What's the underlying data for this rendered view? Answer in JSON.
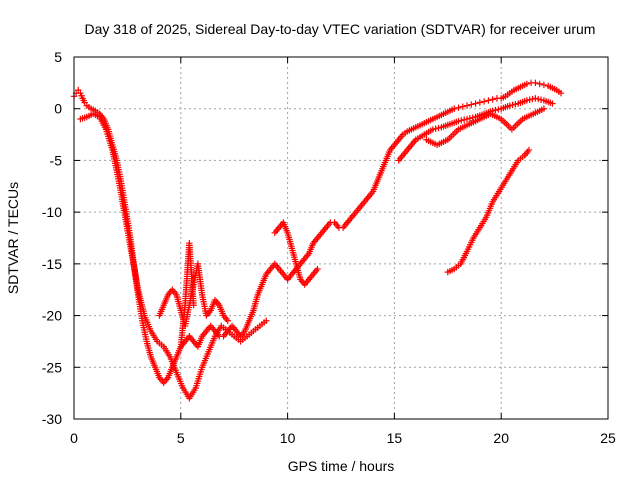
{
  "chart_data": {
    "type": "scatter",
    "title": "Day 318 of 2025, Sidereal Day-to-day VTEC variation (SDTVAR) for receiver urum",
    "xlabel": "GPS time / hours",
    "ylabel": "SDTVAR / TECUs",
    "xlim": [
      0,
      25
    ],
    "ylim": [
      -30,
      5
    ],
    "x_ticks": [
      0,
      5,
      10,
      15,
      20,
      25
    ],
    "y_ticks": [
      -30,
      -25,
      -20,
      -15,
      -10,
      -5,
      0,
      5
    ],
    "grid": true,
    "legend": "none",
    "marker": "+",
    "color": "#ff0000",
    "series": [
      {
        "x": [
          0.0,
          0.1,
          0.2,
          0.3,
          0.4,
          0.5,
          0.6,
          0.8,
          1.0,
          1.2,
          1.4,
          1.6,
          1.8,
          2.0,
          2.2,
          2.4,
          2.6,
          2.8,
          3.0,
          3.2,
          3.4,
          3.6,
          3.8,
          4.0,
          4.2,
          4.4,
          4.6,
          4.8,
          5.0,
          5.2,
          5.4,
          5.6,
          5.8,
          6.0,
          6.2,
          6.4,
          6.6,
          6.8,
          7.0,
          7.2,
          7.4,
          7.6,
          7.8,
          8.0,
          8.2,
          8.4,
          8.6,
          8.8,
          9.0,
          9.2,
          9.4,
          9.6,
          9.8,
          10.0,
          10.2,
          10.4,
          10.6,
          10.8,
          11.0,
          11.2,
          11.4,
          11.6,
          11.8,
          12.0,
          12.2,
          12.4,
          12.6,
          12.8,
          13.0,
          13.2,
          13.4,
          13.6,
          13.8,
          14.0,
          14.2,
          14.4,
          14.6,
          14.8,
          15.0,
          15.2,
          15.4,
          15.6,
          15.8,
          16.0,
          16.2,
          16.4,
          16.6,
          16.8,
          17.0,
          17.2,
          17.4,
          17.6,
          17.8,
          18.0,
          18.2,
          18.4,
          18.6,
          18.8,
          19.0,
          19.2,
          19.4,
          19.6,
          19.8,
          20.0,
          20.2,
          20.4,
          20.6,
          20.8,
          21.0,
          21.2,
          21.4,
          21.6,
          21.8,
          22.0,
          22.2,
          22.4,
          22.6,
          22.8
        ],
        "y": [
          1.2,
          1.5,
          1.8,
          1.5,
          1.0,
          0.6,
          0.3,
          0.0,
          -0.2,
          -0.5,
          -1.0,
          -2.0,
          -3.5,
          -5.0,
          -7.0,
          -9.5,
          -12.0,
          -15.0,
          -18.0,
          -20.5,
          -22.5,
          -24.0,
          -25.0,
          -26.0,
          -26.5,
          -26.0,
          -25.0,
          -24.0,
          -23.0,
          -22.5,
          -22.0,
          -22.5,
          -23.0,
          -22.0,
          -21.5,
          -21.0,
          -21.5,
          -22.0,
          -22.0,
          -21.5,
          -21.0,
          -21.5,
          -22.0,
          -21.5,
          -20.5,
          -19.5,
          -18.0,
          -17.0,
          -16.0,
          -15.5,
          -15.0,
          -15.5,
          -16.0,
          -16.5,
          -16.0,
          -15.5,
          -15.0,
          -14.5,
          -14.0,
          -13.0,
          -12.5,
          -12.0,
          -11.5,
          -11.0,
          -11.0,
          -11.5,
          -11.5,
          -11.0,
          -10.5,
          -10.0,
          -9.5,
          -9.0,
          -8.5,
          -8.0,
          -7.0,
          -6.0,
          -5.0,
          -4.0,
          -3.5,
          -3.0,
          -2.5,
          -2.2,
          -2.0,
          -1.8,
          -1.6,
          -1.4,
          -1.2,
          -1.0,
          -0.8,
          -0.6,
          -0.4,
          -0.2,
          0.0,
          0.1,
          0.2,
          0.3,
          0.4,
          0.5,
          0.6,
          0.7,
          0.8,
          0.9,
          1.0,
          1.0,
          1.2,
          1.5,
          1.8,
          2.0,
          2.2,
          2.4,
          2.5,
          2.5,
          2.4,
          2.3,
          2.2,
          2.0,
          1.8,
          1.5
        ]
      },
      {
        "x": [
          0.3,
          0.6,
          0.9,
          1.2,
          1.5,
          1.8,
          2.1,
          2.4,
          2.7,
          3.0,
          3.3,
          3.6,
          3.9,
          4.2,
          4.5,
          4.8,
          5.1,
          5.4,
          5.7,
          6.0,
          6.3,
          6.6,
          6.9,
          7.2,
          7.5,
          7.8,
          8.1,
          8.4,
          8.7,
          9.0
        ],
        "y": [
          -1.0,
          -0.8,
          -0.5,
          -0.8,
          -2.0,
          -4.0,
          -7.0,
          -10.5,
          -14.0,
          -17.5,
          -20.0,
          -21.5,
          -22.5,
          -23.0,
          -24.0,
          -25.5,
          -27.0,
          -28.0,
          -27.0,
          -25.0,
          -23.5,
          -22.0,
          -21.0,
          -21.5,
          -22.0,
          -22.5,
          -22.0,
          -21.5,
          -21.0,
          -20.5
        ]
      },
      {
        "x": [
          4.0,
          4.2,
          4.4,
          4.6,
          4.8,
          5.0,
          5.2,
          5.4,
          5.6,
          5.8,
          6.0,
          6.2,
          6.4,
          6.6,
          6.8,
          7.0,
          7.2
        ],
        "y": [
          -20.0,
          -19.0,
          -18.0,
          -17.5,
          -18.0,
          -19.5,
          -21.0,
          -19.0,
          -17.0,
          -15.0,
          -18.0,
          -20.0,
          -19.5,
          -18.5,
          -19.0,
          -20.0,
          -20.5
        ]
      },
      {
        "x": [
          5.0,
          5.1,
          5.2,
          5.3,
          5.4,
          5.5,
          5.6
        ],
        "y": [
          -23.0,
          -21.0,
          -19.0,
          -16.0,
          -13.0,
          -16.0,
          -19.0
        ]
      },
      {
        "x": [
          9.4,
          9.6,
          9.8,
          10.0,
          10.2,
          10.4,
          10.6,
          10.8,
          11.0,
          11.2,
          11.4
        ],
        "y": [
          -12.0,
          -11.5,
          -11.0,
          -12.0,
          -13.5,
          -15.0,
          -16.5,
          -17.0,
          -16.5,
          -16.0,
          -15.5
        ]
      },
      {
        "x": [
          15.2,
          15.6,
          16.0,
          16.4,
          16.8,
          17.2,
          17.6,
          18.0,
          18.4,
          18.8,
          19.2,
          19.6,
          20.0,
          20.4,
          20.8,
          21.2,
          21.6,
          22.0,
          22.4
        ],
        "y": [
          -5.0,
          -4.0,
          -3.0,
          -2.5,
          -2.0,
          -1.8,
          -1.5,
          -1.2,
          -1.0,
          -0.8,
          -0.5,
          -0.2,
          0.0,
          0.3,
          0.5,
          0.8,
          1.0,
          0.8,
          0.5
        ]
      },
      {
        "x": [
          16.5,
          17.0,
          17.5,
          18.0,
          18.5,
          19.0,
          19.5,
          20.0,
          20.5,
          21.0,
          21.5,
          22.0
        ],
        "y": [
          -3.0,
          -3.5,
          -3.0,
          -2.0,
          -1.5,
          -1.0,
          -0.5,
          -1.0,
          -2.0,
          -1.0,
          -0.5,
          0.0
        ]
      },
      {
        "x": [
          17.5,
          17.8,
          18.1,
          18.4,
          18.7,
          19.0,
          19.3,
          19.6,
          19.9,
          20.2,
          20.5,
          20.8,
          21.1,
          21.3
        ],
        "y": [
          -15.8,
          -15.5,
          -15.0,
          -13.8,
          -12.5,
          -11.5,
          -10.5,
          -9.0,
          -8.0,
          -7.0,
          -6.0,
          -5.0,
          -4.5,
          -4.0
        ]
      }
    ]
  }
}
